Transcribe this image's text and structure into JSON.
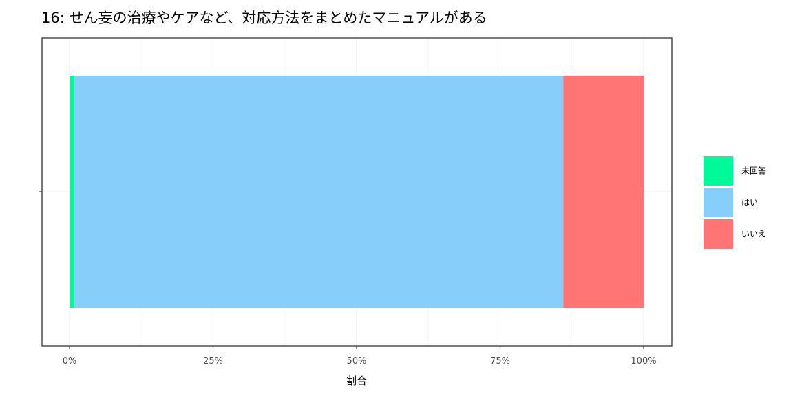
{
  "chart_data": {
    "type": "bar",
    "orientation": "horizontal",
    "stacked": true,
    "title": "16: せん妄の治療やケアなど、対応方法をまとめたマニュアルがある",
    "xlabel": "割合",
    "ylabel": "",
    "xlim": [
      0,
      1
    ],
    "x_ticks": [
      0,
      0.25,
      0.5,
      0.75,
      1.0
    ],
    "x_tick_labels": [
      "0%",
      "25%",
      "50%",
      "75%",
      "100%"
    ],
    "grid": true,
    "legend_position": "right",
    "series": [
      {
        "name": "未回答",
        "value": 0.008,
        "color": "#00FA9A"
      },
      {
        "name": "はい",
        "value": 0.852,
        "color": "#87CEFA"
      },
      {
        "name": "いいえ",
        "value": 0.14,
        "color": "#FF7575"
      }
    ]
  }
}
